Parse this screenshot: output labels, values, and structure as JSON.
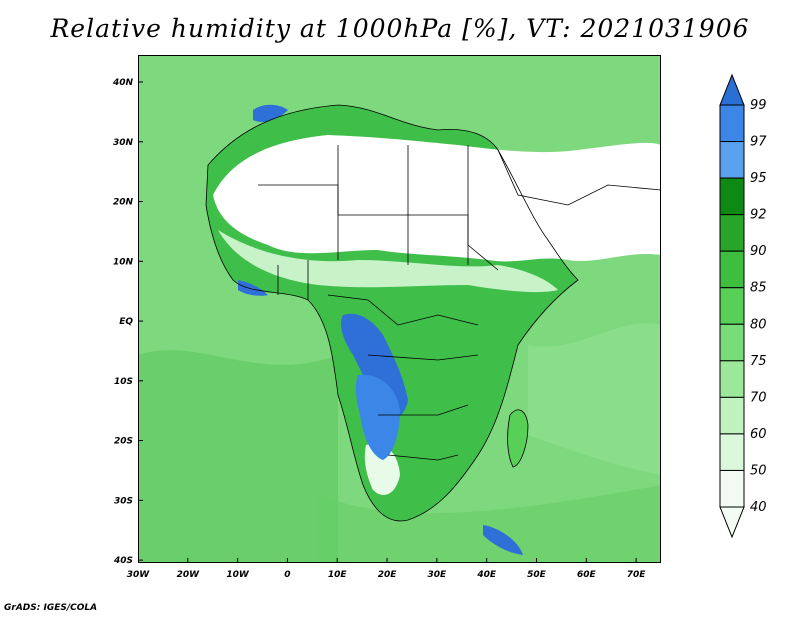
{
  "title": "Relative humidity at 1000hPa [%], VT: 2021031906",
  "credit": "GrADS: IGES/COLA",
  "lon_ticks": [
    "30W",
    "20W",
    "10W",
    "0",
    "10E",
    "20E",
    "30E",
    "40E",
    "50E",
    "60E",
    "70E"
  ],
  "lat_ticks": [
    "40N",
    "30N",
    "20N",
    "10N",
    "EQ",
    "10S",
    "20S",
    "30S",
    "40S"
  ],
  "colorbar": {
    "labels": [
      "99",
      "97",
      "95",
      "92",
      "90",
      "85",
      "80",
      "75",
      "70",
      "60",
      "50",
      "40"
    ],
    "colors": [
      "#2a6fd4",
      "#3b86e6",
      "#5aa2f0",
      "#0e8a14",
      "#28a428",
      "#3ebe3e",
      "#58d058",
      "#78dc78",
      "#9be89b",
      "#bff2bf",
      "#dcf8dc",
      "#f2fcf2"
    ]
  },
  "field_colors": {
    "ocean": "#7ed87e",
    "ocean_dark": "#58c858",
    "dry_land": "#ffffff",
    "semi_dry": "#c8f2c8",
    "humid": "#3fbf4a",
    "saturated": "#2f6fd8",
    "border": "#000000"
  }
}
